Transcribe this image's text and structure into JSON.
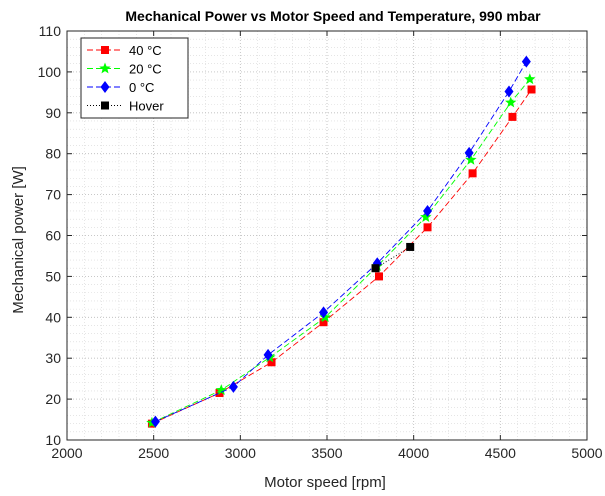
{
  "chart_data": {
    "type": "scatter",
    "title": "Mechanical Power vs Motor Speed and Temperature, 990 mbar",
    "xlabel": "Motor speed [rpm]",
    "ylabel": "Mechanical power [W]",
    "xlim": [
      2000,
      5000
    ],
    "ylim": [
      10,
      110
    ],
    "xticks": [
      2000,
      2500,
      3000,
      3500,
      4000,
      4500,
      5000
    ],
    "yticks": [
      10,
      20,
      30,
      40,
      50,
      60,
      70,
      80,
      90,
      100,
      110
    ],
    "grid": "major and minor, dotted",
    "legend_position": "top-left",
    "series": [
      {
        "name": "40 °C",
        "color": "#ff0000",
        "marker": "square",
        "line": "dashed",
        "points": [
          [
            2490,
            14
          ],
          [
            2880,
            21.5
          ],
          [
            3180,
            29
          ],
          [
            3480,
            38.8
          ],
          [
            3800,
            50
          ],
          [
            4080,
            62
          ],
          [
            4340,
            75.2
          ],
          [
            4570,
            89
          ],
          [
            4680,
            95.7
          ]
        ]
      },
      {
        "name": "20 °C",
        "color": "#00ff00",
        "marker": "star",
        "line": "dashed",
        "points": [
          [
            2490,
            14.2
          ],
          [
            2890,
            22.2
          ],
          [
            3170,
            30.2
          ],
          [
            3490,
            40
          ],
          [
            3790,
            52.5
          ],
          [
            4070,
            64.5
          ],
          [
            4330,
            78.5
          ],
          [
            4560,
            92.5
          ],
          [
            4670,
            98.2
          ]
        ]
      },
      {
        "name": "0 °C",
        "color": "#0000ff",
        "marker": "diamond",
        "line": "dashed",
        "points": [
          [
            2510,
            14.5
          ],
          [
            2960,
            23
          ],
          [
            3160,
            30.8
          ],
          [
            3480,
            41.2
          ],
          [
            3790,
            53.2
          ],
          [
            4080,
            66
          ],
          [
            4320,
            80.2
          ],
          [
            4550,
            95.2
          ],
          [
            4650,
            102.5
          ]
        ]
      },
      {
        "name": "Hover",
        "color": "#000000",
        "marker": "square",
        "line": "dotted",
        "points": [
          [
            3780,
            52
          ],
          [
            3980,
            57.2
          ]
        ]
      }
    ]
  }
}
